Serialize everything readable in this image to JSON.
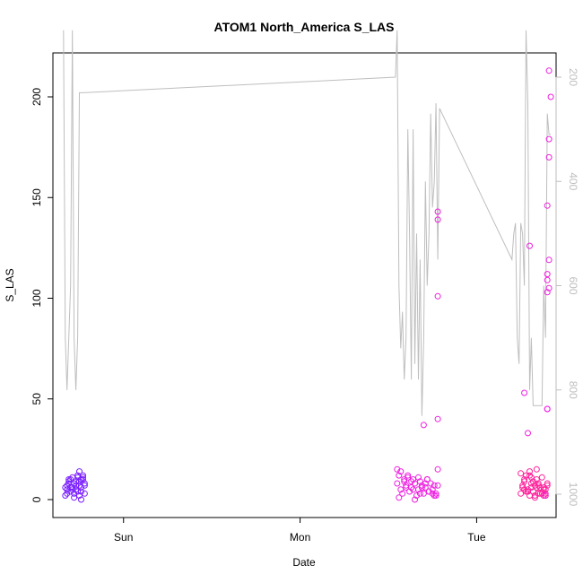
{
  "chart_data": {
    "type": "scatter",
    "title": "ATOM1 North_America S_LAS",
    "xlabel": "Date",
    "ylabel": "S_LAS",
    "x_tick_labels": [
      "Sun",
      "Mon",
      "Tue"
    ],
    "ylim": [
      0,
      220
    ],
    "y_ticks": [
      0,
      50,
      100,
      150,
      200
    ],
    "right_axis": {
      "ticks": [
        200,
        400,
        600,
        800,
        1000
      ],
      "reversed": true,
      "range": [
        110,
        1010
      ],
      "color": "#bebebe"
    },
    "x_range_days": [
      -0.4,
      2.45
    ],
    "series": [
      {
        "type": "points",
        "color": "#7a1fff",
        "x": [
          -0.33,
          -0.32,
          -0.31,
          -0.3,
          -0.29,
          -0.28,
          -0.27,
          -0.26,
          -0.25,
          -0.24,
          -0.23,
          -0.22,
          -0.33,
          -0.31,
          -0.29,
          -0.27,
          -0.25,
          -0.23,
          -0.32,
          -0.3,
          -0.28,
          -0.26,
          -0.24,
          -0.22,
          -0.31,
          -0.29,
          -0.27,
          -0.25,
          -0.23,
          -0.3,
          -0.28,
          -0.26,
          -0.24,
          -0.22,
          -0.32,
          -0.28,
          -0.25,
          -0.24
        ],
        "y": [
          2,
          5,
          8,
          10,
          6,
          3,
          9,
          11,
          7,
          4,
          12,
          8,
          6,
          9,
          11,
          5,
          2,
          10,
          7,
          4,
          8,
          12,
          6,
          3,
          10,
          5,
          7,
          9,
          11,
          6,
          8,
          4,
          10,
          7,
          3,
          1,
          14,
          0
        ]
      },
      {
        "type": "points",
        "color": "#ee1fe0",
        "x": [
          1.55,
          1.56,
          1.57,
          1.58,
          1.59,
          1.6,
          1.61,
          1.62,
          1.63,
          1.64,
          1.65,
          1.66,
          1.67,
          1.68,
          1.69,
          1.7,
          1.71,
          1.72,
          1.73,
          1.74,
          1.75,
          1.76,
          1.77,
          1.78,
          1.55,
          1.57,
          1.59,
          1.61,
          1.63,
          1.65,
          1.67,
          1.69,
          1.71,
          1.73,
          1.75,
          1.77,
          1.56,
          1.6,
          1.64,
          1.68,
          1.72,
          1.76,
          1.78,
          1.78,
          1.78,
          1.7,
          1.78,
          1.78
        ],
        "y": [
          8,
          12,
          5,
          3,
          9,
          7,
          11,
          4,
          6,
          10,
          8,
          2,
          5,
          9,
          7,
          3,
          6,
          10,
          4,
          8,
          5,
          2,
          3,
          7,
          15,
          14,
          10,
          12,
          9,
          0,
          11,
          6,
          8,
          4,
          3,
          2,
          1,
          6,
          5,
          3,
          10,
          7,
          143,
          139,
          101,
          37,
          40,
          15
        ]
      },
      {
        "type": "points",
        "color": "#ff1f9a",
        "x": [
          2.25,
          2.26,
          2.27,
          2.28,
          2.29,
          2.3,
          2.31,
          2.32,
          2.33,
          2.34,
          2.35,
          2.36,
          2.37,
          2.38,
          2.39,
          2.4,
          2.25,
          2.27,
          2.29,
          2.31,
          2.33,
          2.35,
          2.37,
          2.39,
          2.26,
          2.28,
          2.3,
          2.32,
          2.34,
          2.36,
          2.38,
          2.4,
          2.27,
          2.31,
          2.35,
          2.39,
          2.3,
          2.34,
          2.38,
          2.29,
          2.33
        ],
        "y": [
          3,
          6,
          9,
          12,
          5,
          2,
          8,
          4,
          7,
          10,
          3,
          6,
          11,
          5,
          2,
          7,
          13,
          10,
          4,
          6,
          2,
          8,
          3,
          5,
          7,
          4,
          14,
          9,
          6,
          3,
          2,
          8,
          5,
          11,
          7,
          3,
          12,
          15,
          6,
          4,
          1
        ]
      },
      {
        "type": "points",
        "color": "#ee1fe0",
        "x": [
          2.41,
          2.42,
          2.41,
          2.41,
          2.4,
          2.41,
          2.4,
          2.4,
          2.41,
          2.4,
          2.4,
          2.4,
          2.3,
          2.29,
          2.27,
          2.39
        ],
        "y": [
          213,
          200,
          179,
          170,
          146,
          119,
          112,
          109,
          105,
          103,
          45,
          45,
          126,
          33,
          53,
          2
        ]
      },
      {
        "type": "line",
        "color": "#bebebe",
        "axis": "right",
        "x": [
          -0.34,
          -0.33,
          -0.32,
          -0.31,
          -0.3,
          -0.29,
          -0.28,
          -0.27,
          -0.26,
          -0.25,
          -0.24,
          -0.23,
          1.54,
          1.55,
          1.56,
          1.57,
          1.58,
          1.59,
          1.6,
          1.61,
          1.62,
          1.63,
          1.64,
          1.65,
          1.66,
          1.67,
          1.68,
          1.69,
          1.7,
          1.71,
          1.72,
          1.73,
          1.74,
          1.75,
          1.76,
          1.77,
          1.78,
          1.79,
          2.2,
          2.21,
          2.22,
          2.23,
          2.24,
          2.25,
          2.26,
          2.27,
          2.28,
          2.29,
          2.3,
          2.31,
          2.32,
          2.33,
          2.34,
          2.35,
          2.36,
          2.37,
          2.38,
          2.39,
          2.4,
          2.41,
          2.42
        ],
        "y": [
          110,
          700,
          800,
          700,
          600,
          110,
          700,
          800,
          700,
          230,
          230,
          230,
          200,
          110,
          600,
          720,
          650,
          780,
          700,
          300,
          500,
          780,
          300,
          750,
          500,
          780,
          550,
          850,
          700,
          400,
          600,
          500,
          270,
          450,
          400,
          250,
          550,
          260,
          550,
          500,
          480,
          700,
          750,
          480,
          500,
          600,
          110,
          250,
          800,
          700,
          830,
          830,
          830,
          830,
          830,
          830,
          600,
          700,
          270,
          310,
          310
        ]
      }
    ]
  }
}
